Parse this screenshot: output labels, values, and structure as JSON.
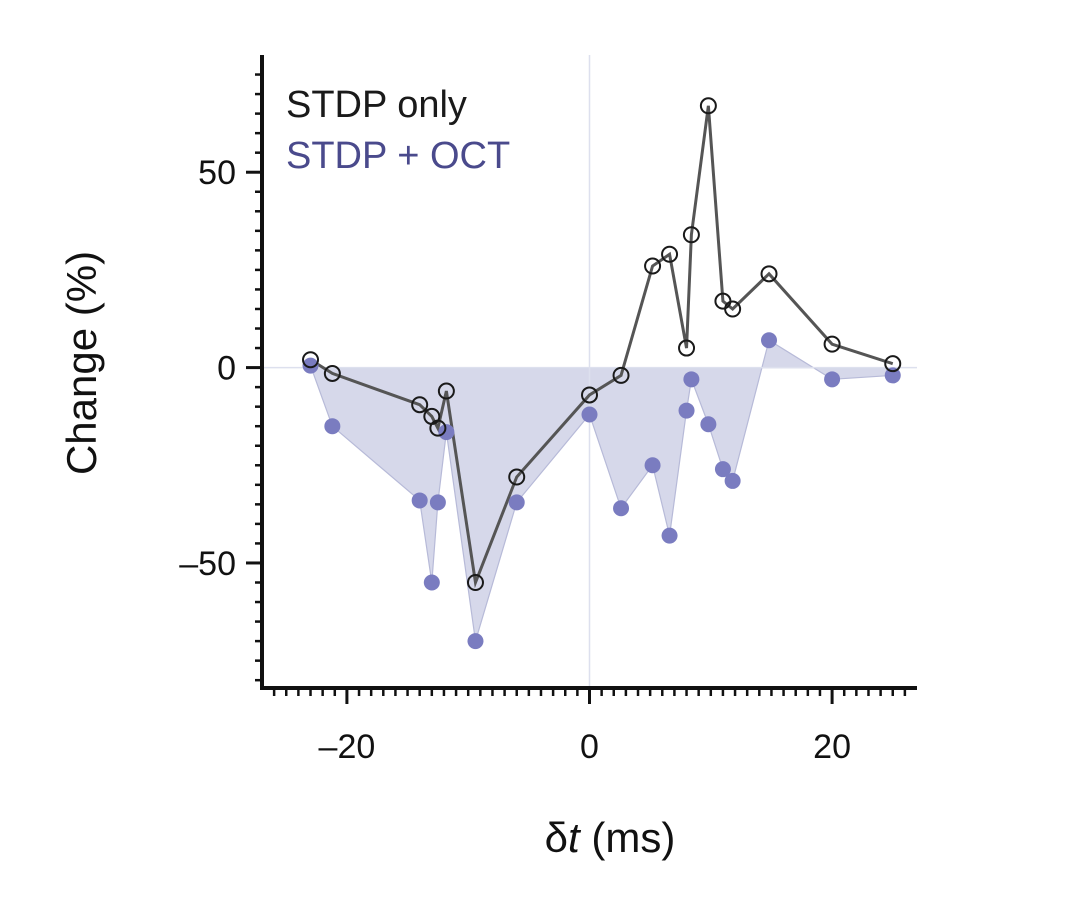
{
  "chart_data": {
    "type": "line",
    "xlabel_symbol": "δ",
    "xlabel_var": "t",
    "xlabel_unit": " (ms)",
    "ylabel": "Change (%)",
    "xlim": [
      -27,
      27
    ],
    "ylim": [
      -82,
      80
    ],
    "xticks": [
      -20,
      0,
      20
    ],
    "xtick_labels": [
      "–20",
      "0",
      "20"
    ],
    "yticks": [
      -50,
      0,
      50
    ],
    "ytick_labels": [
      "–50",
      "0",
      "50"
    ],
    "grid": false,
    "legend_position": "top-left",
    "series": [
      {
        "name": "STDP only",
        "color": "#1a1a1a",
        "marker": "open-circle",
        "x": [
          -23.0,
          -21.2,
          -14.0,
          -13.0,
          -12.5,
          -11.8,
          -9.4,
          -6.0,
          0.0,
          2.6,
          5.2,
          6.6,
          8.0,
          8.4,
          9.8,
          11.0,
          11.8,
          14.8,
          20.0,
          25.0
        ],
        "y": [
          2,
          -1.5,
          -9.5,
          -12.5,
          -15.5,
          -6,
          -55,
          -28,
          -7,
          -2,
          26,
          29,
          5,
          34,
          67,
          17,
          15,
          24,
          6,
          1
        ]
      },
      {
        "name": "STDP + OCT",
        "color": "#7878b8",
        "fill": "#cfd1e6",
        "marker": "filled-circle",
        "x": [
          -23.0,
          -21.2,
          -14.0,
          -13.0,
          -12.5,
          -11.8,
          -9.4,
          -6.0,
          0.0,
          2.6,
          5.2,
          6.6,
          8.0,
          8.4,
          9.8,
          11.0,
          11.8,
          14.8,
          20.0,
          25.0
        ],
        "y": [
          0.5,
          -15,
          -34,
          -55,
          -34.5,
          -16.5,
          -70,
          -34.5,
          -12,
          -36,
          -25,
          -43,
          -11,
          -3,
          -14.5,
          -26,
          -29,
          7,
          -3,
          -2
        ]
      }
    ]
  }
}
